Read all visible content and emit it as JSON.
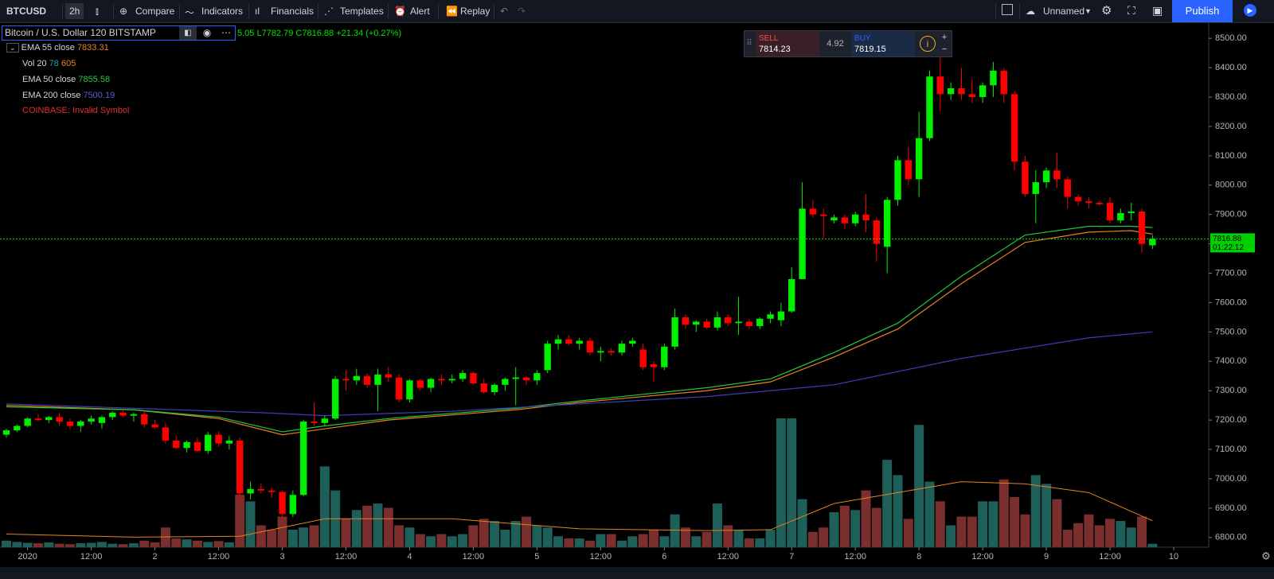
{
  "toolbar": {
    "symbol": "BTCUSD",
    "interval": "2h",
    "items": [
      "Compare",
      "Indicators",
      "Financials",
      "Templates",
      "Alert",
      "Replay"
    ],
    "layout_name": "Unnamed",
    "publish": "Publish"
  },
  "legend": {
    "title": "Bitcoin / U.S. Dollar  120  BITSTAMP",
    "ohlc": "5.05 L7782.79 C7816.88 +21.34 (+0.27%)",
    "error": "COINBASE: Invalid Symbol"
  },
  "trade": {
    "sell_label": "SELL",
    "sell": "7814.23",
    "spread": "4.92",
    "buy_label": "BUY",
    "buy": "7819.15"
  },
  "chart_data": {
    "type": "candlestick",
    "up_color": "#00f000",
    "down_color": "#ff0000",
    "vol_up_color": "#1f5f5a",
    "vol_down_color": "#7a2e2e",
    "candles": [
      [
        7150,
        7170,
        7140,
        7165
      ],
      [
        7165,
        7185,
        7160,
        7180
      ],
      [
        7180,
        7210,
        7175,
        7205
      ],
      [
        7205,
        7220,
        7195,
        7200
      ],
      [
        7200,
        7215,
        7190,
        7210
      ],
      [
        7210,
        7225,
        7180,
        7195
      ],
      [
        7195,
        7205,
        7170,
        7180
      ],
      [
        7180,
        7200,
        7160,
        7195
      ],
      [
        7195,
        7215,
        7185,
        7205
      ],
      [
        7190,
        7215,
        7170,
        7210
      ],
      [
        7210,
        7230,
        7200,
        7225
      ],
      [
        7225,
        7235,
        7210,
        7215
      ],
      [
        7215,
        7225,
        7195,
        7220
      ],
      [
        7220,
        7230,
        7175,
        7185
      ],
      [
        7185,
        7200,
        7170,
        7175
      ],
      [
        7175,
        7190,
        7120,
        7130
      ],
      [
        7130,
        7145,
        7100,
        7105
      ],
      [
        7105,
        7130,
        7090,
        7125
      ],
      [
        7125,
        7140,
        7090,
        7095
      ],
      [
        7095,
        7160,
        7085,
        7150
      ],
      [
        7150,
        7160,
        7110,
        7120
      ],
      [
        7120,
        7145,
        7100,
        7130
      ],
      [
        7130,
        7140,
        6920,
        6950
      ],
      [
        6950,
        6990,
        6930,
        6965
      ],
      [
        6965,
        6985,
        6950,
        6960
      ],
      [
        6960,
        6970,
        6935,
        6955
      ],
      [
        6955,
        6960,
        6860,
        6880
      ],
      [
        6880,
        6960,
        6870,
        6945
      ],
      [
        6945,
        7200,
        6940,
        7195
      ],
      [
        7195,
        7260,
        7180,
        7190
      ],
      [
        7190,
        7215,
        7180,
        7205
      ],
      [
        7205,
        7350,
        7200,
        7340
      ],
      [
        7340,
        7370,
        7300,
        7335
      ],
      [
        7335,
        7375,
        7320,
        7350
      ],
      [
        7350,
        7360,
        7310,
        7320
      ],
      [
        7320,
        7375,
        7230,
        7355
      ],
      [
        7355,
        7380,
        7330,
        7345
      ],
      [
        7345,
        7355,
        7260,
        7270
      ],
      [
        7270,
        7340,
        7260,
        7335
      ],
      [
        7335,
        7340,
        7300,
        7310
      ],
      [
        7310,
        7345,
        7295,
        7340
      ],
      [
        7340,
        7355,
        7320,
        7335
      ],
      [
        7335,
        7355,
        7325,
        7340
      ],
      [
        7340,
        7370,
        7330,
        7360
      ],
      [
        7360,
        7365,
        7320,
        7325
      ],
      [
        7325,
        7340,
        7290,
        7295
      ],
      [
        7295,
        7325,
        7285,
        7320
      ],
      [
        7320,
        7345,
        7300,
        7340
      ],
      [
        7340,
        7380,
        7250,
        7345
      ],
      [
        7345,
        7350,
        7320,
        7335
      ],
      [
        7335,
        7370,
        7320,
        7360
      ],
      [
        7370,
        7470,
        7360,
        7460
      ],
      [
        7460,
        7490,
        7440,
        7475
      ],
      [
        7475,
        7490,
        7455,
        7460
      ],
      [
        7460,
        7480,
        7440,
        7470
      ],
      [
        7470,
        7480,
        7420,
        7430
      ],
      [
        7430,
        7450,
        7400,
        7435
      ],
      [
        7435,
        7445,
        7420,
        7430
      ],
      [
        7430,
        7470,
        7420,
        7460
      ],
      [
        7460,
        7480,
        7450,
        7470
      ],
      [
        7440,
        7460,
        7370,
        7380
      ],
      [
        7390,
        7400,
        7330,
        7380
      ],
      [
        7380,
        7460,
        7370,
        7450
      ],
      [
        7450,
        7580,
        7440,
        7550
      ],
      [
        7550,
        7560,
        7510,
        7525
      ],
      [
        7525,
        7540,
        7500,
        7535
      ],
      [
        7535,
        7545,
        7510,
        7515
      ],
      [
        7515,
        7570,
        7505,
        7550
      ],
      [
        7550,
        7560,
        7520,
        7530
      ],
      [
        7530,
        7620,
        7490,
        7535
      ],
      [
        7535,
        7545,
        7510,
        7520
      ],
      [
        7520,
        7550,
        7510,
        7545
      ],
      [
        7545,
        7570,
        7530,
        7560
      ],
      [
        7540,
        7600,
        7520,
        7570
      ],
      [
        7570,
        7720,
        7565,
        7680
      ],
      [
        7680,
        8010,
        7680,
        7920
      ],
      [
        7920,
        7950,
        7890,
        7900
      ],
      [
        7900,
        7920,
        7820,
        7895
      ],
      [
        7880,
        7900,
        7870,
        7890
      ],
      [
        7890,
        7900,
        7850,
        7870
      ],
      [
        7870,
        7910,
        7860,
        7900
      ],
      [
        7900,
        7970,
        7840,
        7880
      ],
      [
        7880,
        7890,
        7740,
        7800
      ],
      [
        7790,
        7960,
        7700,
        7950
      ],
      [
        7950,
        8100,
        7930,
        8085
      ],
      [
        8085,
        8130,
        8000,
        8020
      ],
      [
        8020,
        8250,
        7960,
        8160
      ],
      [
        8160,
        8390,
        8150,
        8370
      ],
      [
        8370,
        8440,
        8250,
        8310
      ],
      [
        8310,
        8350,
        8290,
        8330
      ],
      [
        8330,
        8400,
        8290,
        8310
      ],
      [
        8310,
        8360,
        8280,
        8300
      ],
      [
        8300,
        8350,
        8280,
        8340
      ],
      [
        8340,
        8420,
        8300,
        8390
      ],
      [
        8390,
        8400,
        8280,
        8310
      ],
      [
        8310,
        8320,
        8050,
        8080
      ],
      [
        8080,
        8100,
        7960,
        7970
      ],
      [
        7970,
        8050,
        7870,
        8010
      ],
      [
        8010,
        8060,
        7990,
        8050
      ],
      [
        8050,
        8110,
        7990,
        8020
      ],
      [
        8020,
        8030,
        7920,
        7960
      ],
      [
        7960,
        7970,
        7930,
        7945
      ],
      [
        7945,
        7960,
        7920,
        7940
      ],
      [
        7940,
        7945,
        7930,
        7935
      ],
      [
        7940,
        7960,
        7870,
        7880
      ],
      [
        7880,
        7920,
        7870,
        7905
      ],
      [
        7905,
        7940,
        7880,
        7910
      ],
      [
        7910,
        7920,
        7770,
        7800
      ],
      [
        7795,
        7830,
        7782.79,
        7816.88
      ]
    ],
    "volume": [
      150,
      120,
      100,
      90,
      110,
      80,
      70,
      90,
      100,
      120,
      80,
      70,
      90,
      150,
      110,
      450,
      200,
      180,
      150,
      120,
      140,
      110,
      1200,
      1050,
      500,
      400,
      700,
      400,
      450,
      500,
      1850,
      1300,
      650,
      850,
      950,
      1000,
      900,
      500,
      450,
      300,
      250,
      300,
      250,
      300,
      500,
      650,
      600,
      400,
      600,
      700,
      500,
      450,
      250,
      200,
      200,
      150,
      300,
      300,
      150,
      250,
      300,
      400,
      250,
      750,
      450,
      250,
      350,
      1000,
      500,
      400,
      200,
      200,
      400,
      2950,
      2950,
      1100,
      350,
      450,
      800,
      950,
      850,
      1300,
      900,
      2000,
      1650,
      650,
      2800,
      1500,
      1050,
      500,
      700,
      700,
      1050,
      1050,
      1550,
      1150,
      750,
      1650,
      1450,
      1100,
      400,
      550,
      750,
      500,
      650,
      600,
      450,
      700,
      78
    ],
    "volume_ylim": [
      0,
      12000
    ],
    "volume_ma": {
      "name": "Vol 20",
      "color": "#e6821e",
      "x": [
        0,
        12,
        22,
        30,
        42,
        54,
        66,
        72,
        78,
        84,
        90,
        96,
        102,
        108
      ],
      "values": [
        300,
        230,
        250,
        650,
        650,
        420,
        380,
        400,
        1000,
        1250,
        1500,
        1450,
        1250,
        605
      ]
    },
    "series": [
      {
        "name": "EMA 55 close",
        "color": "#e6821e",
        "x": [
          0,
          12,
          20,
          26,
          30,
          36,
          48,
          54,
          66,
          72,
          78,
          84,
          90,
          96,
          102,
          106,
          108
        ],
        "values": [
          7250,
          7235,
          7205,
          7150,
          7170,
          7200,
          7235,
          7260,
          7300,
          7330,
          7415,
          7510,
          7665,
          7805,
          7840,
          7845,
          7833.31
        ]
      },
      {
        "name": "EMA 50 close",
        "color": "#22c83c",
        "x": [
          0,
          12,
          20,
          26,
          30,
          36,
          48,
          54,
          66,
          72,
          78,
          84,
          90,
          96,
          102,
          106,
          108
        ],
        "values": [
          7245,
          7235,
          7210,
          7160,
          7180,
          7205,
          7240,
          7265,
          7310,
          7340,
          7430,
          7530,
          7690,
          7830,
          7860,
          7860,
          7855.58
        ]
      },
      {
        "name": "EMA 200 close",
        "color": "#3d3db4",
        "x": [
          0,
          12,
          24,
          30,
          42,
          54,
          66,
          78,
          90,
          102,
          108
        ],
        "values": [
          7255,
          7240,
          7225,
          7215,
          7230,
          7255,
          7280,
          7320,
          7410,
          7480,
          7500.19
        ]
      }
    ],
    "last_price": 7816.88,
    "last_price_label": "7816.88",
    "countdown": "01:22:12",
    "xlim": [
      -0.6,
      113.3
    ],
    "xticks": [
      {
        "value": 2,
        "label": "2020"
      },
      {
        "value": 8,
        "label": "12:00"
      },
      {
        "value": 14,
        "label": "2"
      },
      {
        "value": 20,
        "label": "12:00"
      },
      {
        "value": 26,
        "label": "3"
      },
      {
        "value": 32,
        "label": "12:00"
      },
      {
        "value": 38,
        "label": "4"
      },
      {
        "value": 44,
        "label": "12:00"
      },
      {
        "value": 50,
        "label": "5"
      },
      {
        "value": 56,
        "label": "12:00"
      },
      {
        "value": 62,
        "label": "6"
      },
      {
        "value": 68,
        "label": "12:00"
      },
      {
        "value": 74,
        "label": "7"
      },
      {
        "value": 80,
        "label": "12:00"
      },
      {
        "value": 86,
        "label": "8"
      },
      {
        "value": 92,
        "label": "12:00"
      },
      {
        "value": 98,
        "label": "9"
      },
      {
        "value": 104,
        "label": "12:00"
      },
      {
        "value": 110,
        "label": "10"
      }
    ],
    "ylim": [
      6767,
      8552
    ],
    "yticks": [
      {
        "value": 6800,
        "label": "6800.00"
      },
      {
        "value": 6900,
        "label": "6900.00"
      },
      {
        "value": 7000,
        "label": "7000.00"
      },
      {
        "value": 7100,
        "label": "7100.00"
      },
      {
        "value": 7200,
        "label": "7200.00"
      },
      {
        "value": 7300,
        "label": "7300.00"
      },
      {
        "value": 7400,
        "label": "7400.00"
      },
      {
        "value": 7500,
        "label": "7500.00"
      },
      {
        "value": 7600,
        "label": "7600.00"
      },
      {
        "value": 7700,
        "label": "7700.00"
      },
      {
        "value": 7800,
        "label": "7800.00"
      },
      {
        "value": 7900,
        "label": "7900.00"
      },
      {
        "value": 8000,
        "label": "8000.00"
      },
      {
        "value": 8100,
        "label": "8100.00"
      },
      {
        "value": 8200,
        "label": "8200.00"
      },
      {
        "value": 8300,
        "label": "8300.00"
      },
      {
        "value": 8400,
        "label": "8400.00"
      },
      {
        "value": 8500,
        "label": "8500.00"
      }
    ]
  }
}
